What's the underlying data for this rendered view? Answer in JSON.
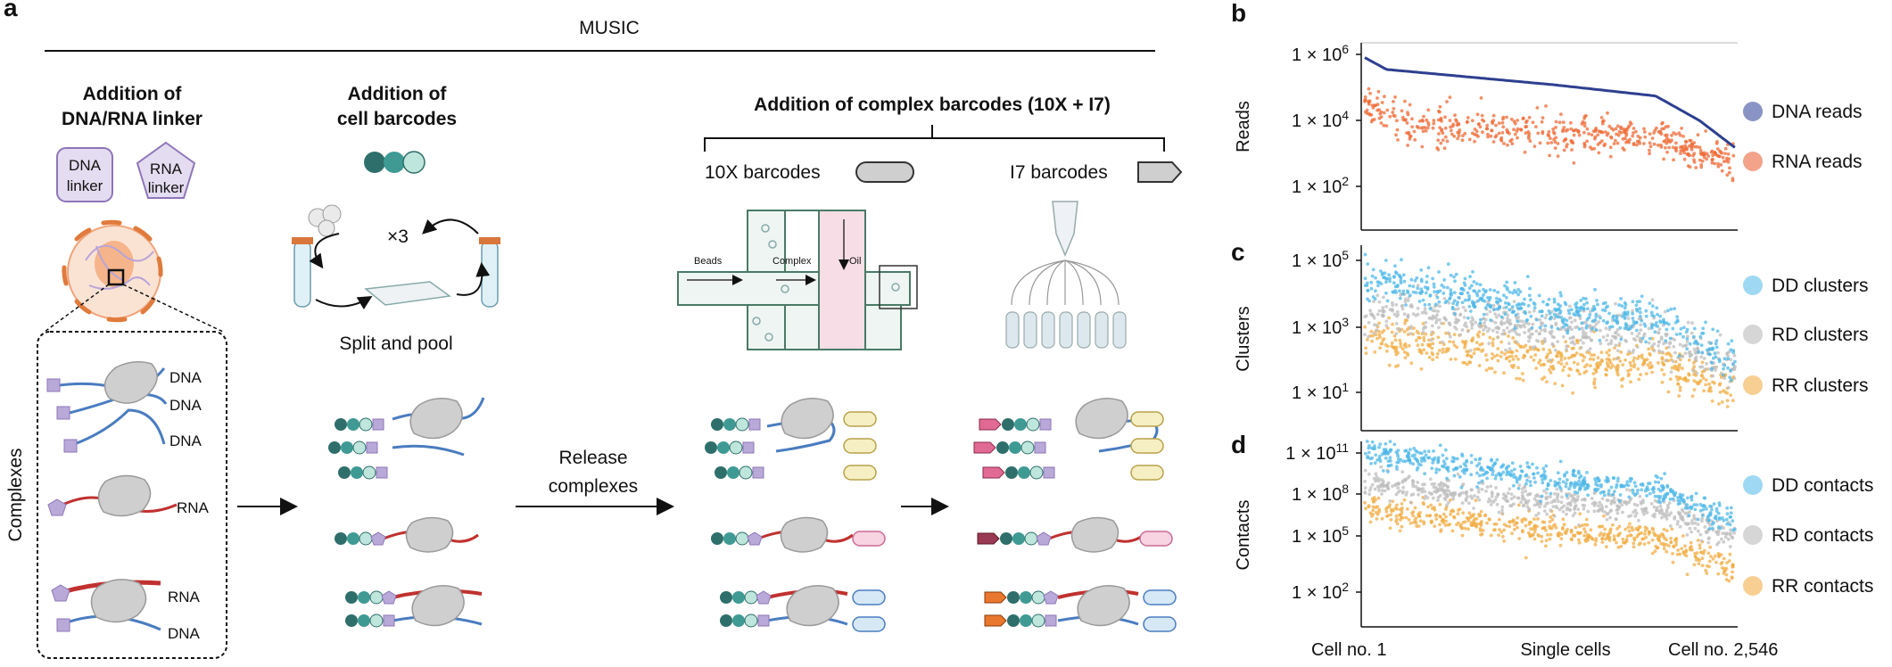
{
  "colors": {
    "linker_fill": "#e4dcf0",
    "linker_stroke": "#8e76b8",
    "teal_dark": "#2f6f6b",
    "teal_mid": "#3f9a94",
    "teal_light": "#bfe6dc",
    "dna_reads": "#2e3f8f",
    "rna_reads": "#ef6a36",
    "dd": "#4fb8e8",
    "rd": "#bdbdbd",
    "rr": "#f2ad45",
    "rna_strand": "#c0312f",
    "dna_strand": "#4a7cc0"
  },
  "panel_a": {
    "letter": "a",
    "title": "MUSIC",
    "step1": {
      "line1": "Addition of",
      "line2": "DNA/RNA linker",
      "dna_linker": [
        "DNA",
        "linker"
      ],
      "rna_linker": [
        "RNA",
        "linker"
      ]
    },
    "step2": {
      "line1": "Addition of",
      "line2": "cell barcodes",
      "rounds": "×3",
      "split_pool": "Split and pool"
    },
    "step3": {
      "title": "Addition of complex barcodes (10X + I7)",
      "tenx": "10X barcodes",
      "i7": "I7 barcodes",
      "chip_labels": {
        "beads": "Beads",
        "complex": "Complex",
        "oil": "Oil"
      }
    },
    "complexes_label": "Complexes",
    "strand_labels": {
      "dna1": "DNA",
      "dna2": "DNA",
      "dna3": "DNA",
      "rna1": "RNA",
      "rna2": "RNA",
      "dna4": "DNA"
    },
    "release": {
      "line1": "Release",
      "line2": "complexes"
    }
  },
  "panel_b": {
    "letter": "b",
    "ylabel": "Reads",
    "ticks": [
      "1 × 10",
      "1 × 10",
      "1 × 10"
    ],
    "exps": [
      "6",
      "4",
      "2"
    ],
    "legend": [
      "DNA reads",
      "RNA reads"
    ]
  },
  "panel_c": {
    "letter": "c",
    "ylabel": "Clusters",
    "ticks": [
      "1 × 10",
      "1 × 10",
      "1 × 10"
    ],
    "exps": [
      "5",
      "3",
      "1"
    ],
    "legend": [
      "DD clusters",
      "RD clusters",
      "RR clusters"
    ]
  },
  "panel_d": {
    "letter": "d",
    "ylabel": "Contacts",
    "ticks": [
      "1 × 10",
      "1 × 10",
      "1 × 10",
      "1 × 10"
    ],
    "exps": [
      "11",
      "8",
      "5",
      "2"
    ],
    "legend": [
      "DD contacts",
      "RD contacts",
      "RR contacts"
    ],
    "xlabels": [
      "Cell no. 1",
      "Single cells",
      "Cell  no. 2,546"
    ]
  },
  "chart_data": [
    {
      "type": "scatter",
      "ylabel": "Reads",
      "yscale": "log",
      "ylim": [
        10,
        1000000
      ],
      "xlabel": "Single cells",
      "xlim": [
        1,
        2546
      ],
      "series": [
        {
          "name": "DNA reads",
          "trend": [
            [
              1,
              800000
            ],
            [
              150,
              350000
            ],
            [
              1300,
              120000
            ],
            [
              2000,
              55000
            ],
            [
              2300,
              10000
            ],
            [
              2546,
              1500
            ]
          ]
        },
        {
          "name": "RNA reads",
          "trend": [
            [
              1,
              40000
            ],
            [
              300,
              8000
            ],
            [
              1300,
              4000
            ],
            [
              2000,
              3000
            ],
            [
              2546,
              500
            ]
          ]
        }
      ]
    },
    {
      "type": "scatter",
      "ylabel": "Clusters",
      "yscale": "log",
      "ylim": [
        1,
        100000
      ],
      "xlabel": "Single cells",
      "xlim": [
        1,
        2546
      ],
      "series": [
        {
          "name": "DD clusters",
          "trend": [
            [
              1,
              30000
            ],
            [
              1300,
              3000
            ],
            [
              2000,
              1500
            ],
            [
              2546,
              100
            ]
          ]
        },
        {
          "name": "RD clusters",
          "trend": [
            [
              1,
              3000
            ],
            [
              1300,
              800
            ],
            [
              2000,
              500
            ],
            [
              2546,
              50
            ]
          ]
        },
        {
          "name": "RR clusters",
          "trend": [
            [
              1,
              500
            ],
            [
              1300,
              100
            ],
            [
              2000,
              60
            ],
            [
              2546,
              10
            ]
          ]
        }
      ]
    },
    {
      "type": "scatter",
      "ylabel": "Contacts",
      "yscale": "log",
      "ylim": [
        10,
        100000000000
      ],
      "xlabel": "Single cells",
      "xlim": [
        1,
        2546
      ],
      "series": [
        {
          "name": "DD contacts",
          "trend": [
            [
              1,
              100000000000
            ],
            [
              1300,
              2000000000
            ],
            [
              2000,
              500000000
            ],
            [
              2546,
              3000000
            ]
          ]
        },
        {
          "name": "RD contacts",
          "trend": [
            [
              1,
              1000000000
            ],
            [
              1300,
              60000000
            ],
            [
              2000,
              20000000
            ],
            [
              2546,
              300000
            ]
          ]
        },
        {
          "name": "RR contacts",
          "trend": [
            [
              1,
              30000000
            ],
            [
              1300,
              1000000
            ],
            [
              2000,
              300000
            ],
            [
              2546,
              3000
            ]
          ]
        }
      ]
    }
  ]
}
